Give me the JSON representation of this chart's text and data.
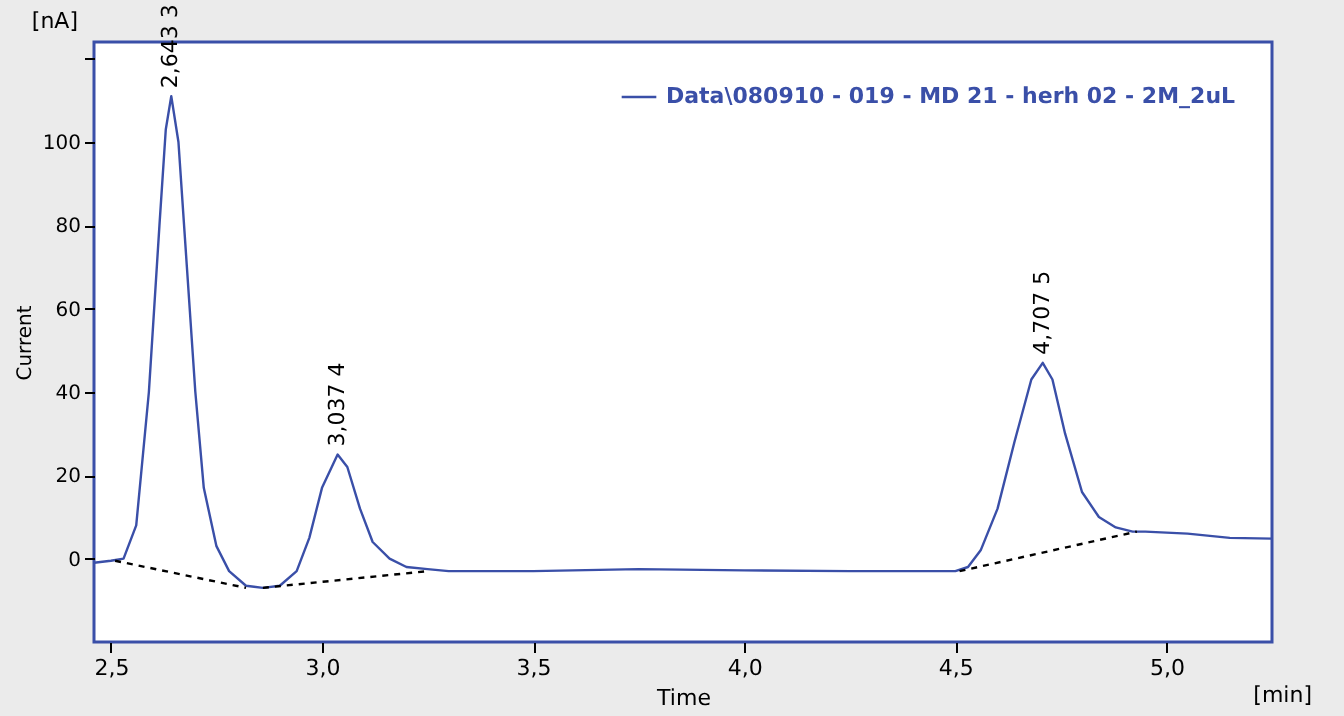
{
  "chart_data": {
    "type": "line",
    "xlabel": "Time",
    "ylabel": "Current",
    "x": [
      2.46,
      2.5,
      2.53,
      2.56,
      2.59,
      2.615,
      2.63,
      2.643,
      2.66,
      2.68,
      2.7,
      2.72,
      2.75,
      2.78,
      2.82,
      2.86,
      2.9,
      2.94,
      2.97,
      3.0,
      3.037,
      3.06,
      3.09,
      3.12,
      3.16,
      3.2,
      3.25,
      3.3,
      3.5,
      3.75,
      4.0,
      4.25,
      4.5,
      4.53,
      4.56,
      4.6,
      4.64,
      4.68,
      4.707,
      4.73,
      4.76,
      4.8,
      4.84,
      4.88,
      4.92,
      4.95,
      5.05,
      5.15,
      5.25
    ],
    "series": [
      {
        "name": "Data\\080910 - 019 - MD 21 - herh 02 - 2M_2uL",
        "color": "#3a4fa8",
        "values": [
          -1,
          -0.5,
          0,
          8,
          40,
          80,
          103,
          111,
          100,
          70,
          40,
          17,
          3,
          -3,
          -6.5,
          -7,
          -6.5,
          -3,
          5,
          17,
          25,
          22,
          12,
          4,
          0,
          -2,
          -2.5,
          -3,
          -3,
          -2.5,
          -2.8,
          -3,
          -3,
          -2,
          2,
          12,
          28,
          43,
          47,
          43,
          30,
          16,
          10,
          7.5,
          6.5,
          6.5,
          6,
          5,
          4.8
        ]
      },
      {
        "type": "line",
        "color": "#000000",
        "line_style": "dashed",
        "x": [
          2.51,
          2.82,
          2.84,
          2.86,
          3.25,
          3.3,
          4.51,
          4.93
        ],
        "values": [
          -0.5,
          -7,
          null,
          -7,
          -3,
          null,
          -3,
          6.5
        ]
      }
    ],
    "xlim": [
      2.46,
      5.25
    ],
    "ylim": [
      -20,
      124
    ],
    "xticks": [
      {
        "value": 2.5,
        "label": "2,5"
      },
      {
        "value": 3.0,
        "label": "3,0"
      },
      {
        "value": 3.5,
        "label": "3,5"
      },
      {
        "value": 4.0,
        "label": "4,0"
      },
      {
        "value": 4.5,
        "label": "4,5"
      },
      {
        "value": 5.0,
        "label": "5,0"
      }
    ],
    "yticks": [
      0,
      20,
      40,
      60,
      80,
      100,
      {
        "value": 120,
        "label": null
      }
    ],
    "annotations": [
      {
        "text": "2,643   3",
        "x": 2.643,
        "y": 111
      },
      {
        "text": "3,037   4",
        "x": 3.037,
        "y": 25
      },
      {
        "text": "4,707   5",
        "x": 4.707,
        "y": 47
      },
      "[nA]",
      "[min]"
    ],
    "legend": "top right",
    "grid": false,
    "marker": "none",
    "line_style": "solid"
  }
}
